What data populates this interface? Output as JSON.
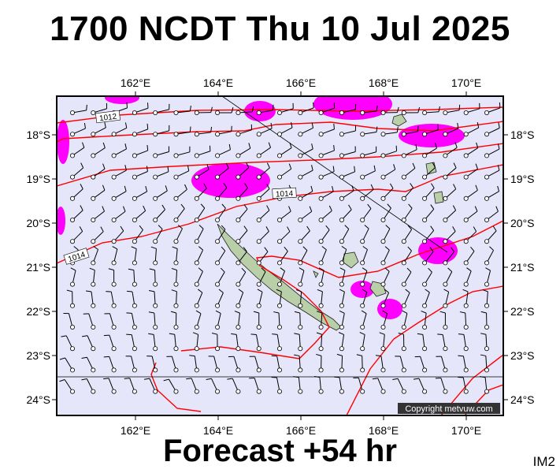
{
  "header": {
    "title": "1700 NCDT Thu 10 Jul 2025"
  },
  "footer": {
    "forecast": "Forecast +54 hr",
    "code": "IM2"
  },
  "map": {
    "copyright": "Copyright metvuw.com",
    "lon_ticks": [
      "162°E",
      "164°E",
      "166°E",
      "168°E",
      "170°E"
    ],
    "lat_ticks": [
      "18°S",
      "19°S",
      "20°S",
      "21°S",
      "22°S",
      "23°S",
      "24°S"
    ],
    "isobar_labels": [
      "1012",
      "1014",
      "1014"
    ],
    "colors": {
      "background": "#e6e6fa",
      "precip": "#ff00ff",
      "isobar": "#ff0000",
      "land": "#b9cfa8"
    }
  }
}
